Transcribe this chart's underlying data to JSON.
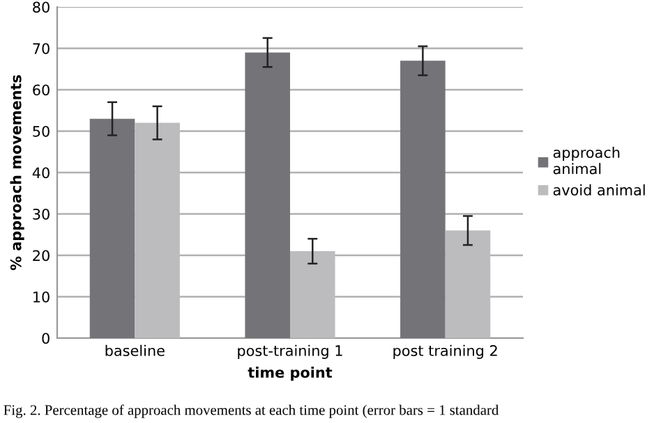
{
  "chart_data": {
    "type": "bar",
    "categories": [
      "baseline",
      "post-training 1",
      "post training 2"
    ],
    "series": [
      {
        "name": "approach\nanimal",
        "color": "#737378",
        "values": [
          53,
          69,
          67
        ],
        "errors": [
          4,
          3.5,
          3.5
        ]
      },
      {
        "name": "avoid animal",
        "color": "#bcbcbe",
        "values": [
          52,
          21,
          26
        ],
        "errors": [
          4,
          3,
          3.5
        ]
      }
    ],
    "xlabel": "time point",
    "ylabel": "% approach movements",
    "ylim": [
      0,
      80
    ],
    "yticks": [
      0,
      10,
      20,
      30,
      40,
      50,
      60,
      70,
      80
    ],
    "grid": "y",
    "legend": "right",
    "annotations": [
      "Fig. 2. Percentage of approach movements at each time point (error bars = 1 standard"
    ]
  }
}
